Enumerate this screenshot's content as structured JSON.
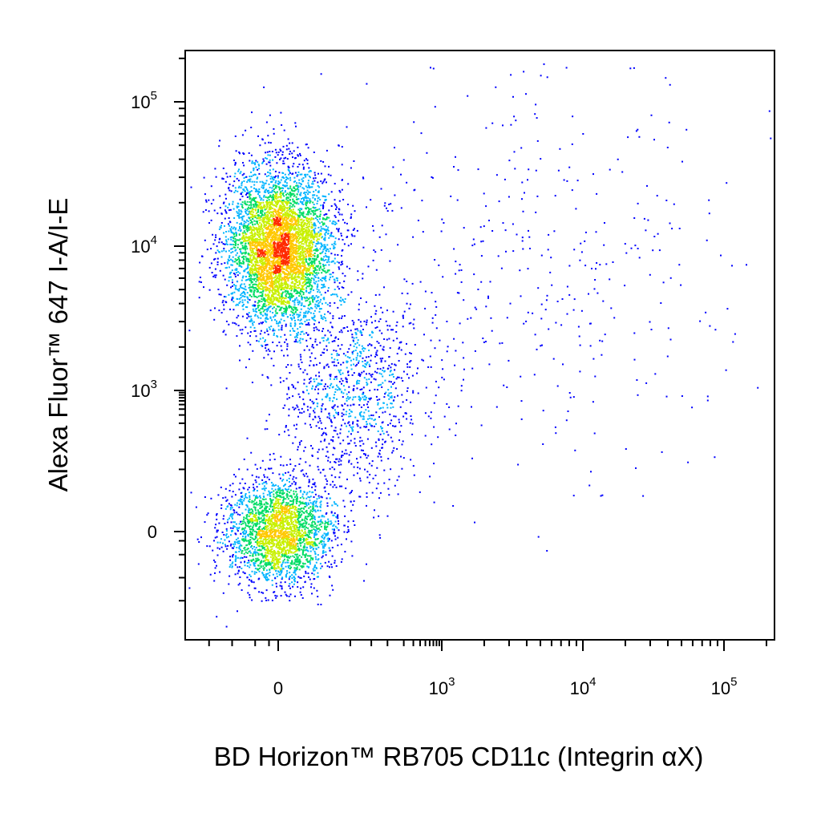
{
  "chart_data": {
    "type": "scatter",
    "subtype": "flow-cytometry-density-dot-plot",
    "xlabel": "BD Horizon™ RB705 CD11c (Integrin αX)",
    "ylabel": "Alexa Fluor™ 647 I-A/I-E",
    "x_scale": "biexponential",
    "y_scale": "biexponential",
    "xlim": [
      -200,
      200000
    ],
    "ylim": [
      -200,
      200000
    ],
    "x_ticks": [
      {
        "value": 0,
        "base": "0",
        "exp": ""
      },
      {
        "value": 1000,
        "base": "10",
        "exp": "3"
      },
      {
        "value": 10000,
        "base": "10",
        "exp": "4"
      },
      {
        "value": 100000,
        "base": "10",
        "exp": "5"
      }
    ],
    "y_ticks": [
      {
        "value": 0,
        "base": "0",
        "exp": ""
      },
      {
        "value": 1000,
        "base": "10",
        "exp": "3"
      },
      {
        "value": 10000,
        "base": "10",
        "exp": "4"
      },
      {
        "value": 100000,
        "base": "10",
        "exp": "5"
      }
    ],
    "density_colors": [
      "#0000ff",
      "#00b4ff",
      "#00dc64",
      "#c8f000",
      "#ffc800",
      "#ff2a00"
    ],
    "grid": false,
    "legend": "none",
    "populations": [
      {
        "x_center": 0,
        "y_center": 10000,
        "x_spread": 60,
        "y_spread": 0.45,
        "relative_size": 0.55
      },
      {
        "x_center": 0,
        "y_center": 0,
        "x_spread": 60,
        "y_spread": 60,
        "relative_size": 0.28
      },
      {
        "x_center": 20,
        "y_center": 1000,
        "x_spread": 80,
        "y_spread": 0.6,
        "relative_size": 0.12
      },
      {
        "x_center": 4000,
        "y_center": 8000,
        "x_spread": 1.2,
        "y_spread": 1.2,
        "relative_size": 0.05
      }
    ]
  }
}
